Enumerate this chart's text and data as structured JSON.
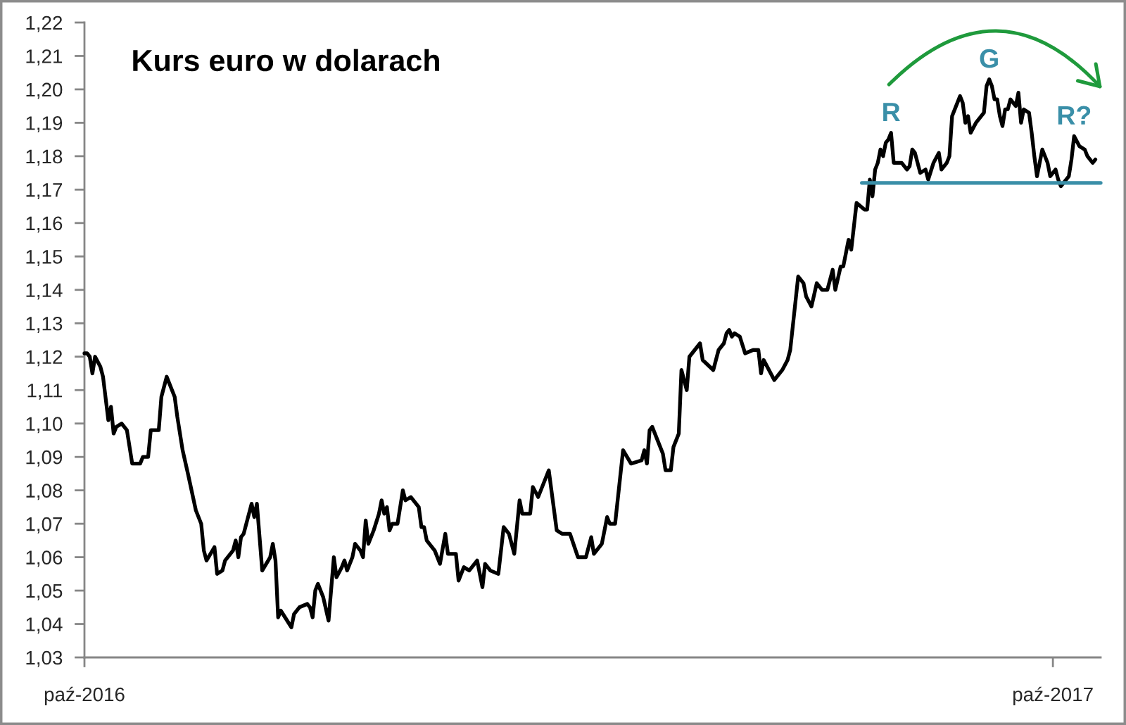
{
  "chart_data": {
    "type": "line",
    "title": "Kurs euro w dolarach",
    "x": [
      "2016-10-03",
      "2016-10-04",
      "2016-10-05",
      "2016-10-06",
      "2016-10-07",
      "2016-10-09",
      "2016-10-10",
      "2016-10-12",
      "2016-10-13",
      "2016-10-14",
      "2016-10-15",
      "2016-10-17",
      "2016-10-19",
      "2016-10-21",
      "2016-10-24",
      "2016-10-25",
      "2016-10-27",
      "2016-10-28",
      "2016-10-31",
      "2016-11-01",
      "2016-11-03",
      "2016-11-06",
      "2016-11-07",
      "2016-11-09",
      "2016-11-11",
      "2016-11-14",
      "2016-11-16",
      "2016-11-17",
      "2016-11-18",
      "2016-11-21",
      "2016-11-22",
      "2016-11-24",
      "2016-11-25",
      "2016-11-28",
      "2016-11-29",
      "2016-11-30",
      "2016-12-01",
      "2016-12-02",
      "2016-12-05",
      "2016-12-06",
      "2016-12-07",
      "2016-12-09",
      "2016-12-12",
      "2016-12-13",
      "2016-12-14",
      "2016-12-15",
      "2016-12-16",
      "2016-12-20",
      "2016-12-21",
      "2016-12-23",
      "2016-12-26",
      "2016-12-27",
      "2016-12-28",
      "2016-12-29",
      "2016-12-30",
      "2017-01-01",
      "2017-01-03",
      "2017-01-05",
      "2017-01-06",
      "2017-01-08",
      "2017-01-09",
      "2017-01-10",
      "2017-01-12",
      "2017-01-13",
      "2017-01-15",
      "2017-01-16",
      "2017-01-17",
      "2017-01-18",
      "2017-01-20",
      "2017-01-22",
      "2017-01-23",
      "2017-01-24",
      "2017-01-25",
      "2017-01-26",
      "2017-01-27",
      "2017-01-29",
      "2017-01-31",
      "2017-02-01",
      "2017-02-03",
      "2017-02-06",
      "2017-02-07",
      "2017-02-08",
      "2017-02-09",
      "2017-02-12",
      "2017-02-14",
      "2017-02-16",
      "2017-02-17",
      "2017-02-20",
      "2017-02-21",
      "2017-02-23",
      "2017-02-25",
      "2017-02-28",
      "2017-03-02",
      "2017-03-03",
      "2017-03-05",
      "2017-03-08",
      "2017-03-10",
      "2017-03-12",
      "2017-03-14",
      "2017-03-16",
      "2017-03-17",
      "2017-03-20",
      "2017-03-21",
      "2017-03-23",
      "2017-03-27",
      "2017-03-30",
      "2017-04-01",
      "2017-04-04",
      "2017-04-07",
      "2017-04-10",
      "2017-04-12",
      "2017-04-13",
      "2017-04-16",
      "2017-04-18",
      "2017-04-19",
      "2017-04-21",
      "2017-04-24",
      "2017-04-27",
      "2017-05-01",
      "2017-05-02",
      "2017-05-03",
      "2017-05-04",
      "2017-05-05",
      "2017-05-09",
      "2017-05-10",
      "2017-05-12",
      "2017-05-13",
      "2017-05-15",
      "2017-05-16",
      "2017-05-18",
      "2017-05-19",
      "2017-05-21",
      "2017-05-23",
      "2017-05-24",
      "2017-05-28",
      "2017-05-30",
      "2017-06-01",
      "2017-06-02",
      "2017-06-03",
      "2017-06-04",
      "2017-06-05",
      "2017-06-07",
      "2017-06-09",
      "2017-06-12",
      "2017-06-14",
      "2017-06-15",
      "2017-06-16",
      "2017-06-20",
      "2017-06-23",
      "2017-06-25",
      "2017-06-26",
      "2017-06-29",
      "2017-07-01",
      "2017-07-02",
      "2017-07-04",
      "2017-07-06",
      "2017-07-08",
      "2017-07-10",
      "2017-07-12",
      "2017-07-13",
      "2017-07-15",
      "2017-07-16",
      "2017-07-17",
      "2017-07-18",
      "2017-07-19",
      "2017-07-21",
      "2017-07-24",
      "2017-07-25",
      "2017-07-26",
      "2017-07-27",
      "2017-07-28",
      "2017-07-29",
      "2017-07-30",
      "2017-07-31",
      "2017-08-01",
      "2017-08-02",
      "2017-08-03",
      "2017-08-04",
      "2017-08-06",
      "2017-08-07",
      "2017-08-09",
      "2017-08-10",
      "2017-08-11",
      "2017-08-12",
      "2017-08-14",
      "2017-08-16",
      "2017-08-17",
      "2017-08-19",
      "2017-08-21",
      "2017-08-22",
      "2017-08-24",
      "2017-08-25",
      "2017-08-26",
      "2017-08-27",
      "2017-08-29",
      "2017-08-30",
      "2017-08-31",
      "2017-09-01",
      "2017-09-02",
      "2017-09-04",
      "2017-09-06",
      "2017-09-07",
      "2017-09-08",
      "2017-09-09",
      "2017-09-10",
      "2017-09-11",
      "2017-09-12",
      "2017-09-13",
      "2017-09-14",
      "2017-09-15",
      "2017-09-16",
      "2017-09-17",
      "2017-09-19",
      "2017-09-20",
      "2017-09-21",
      "2017-09-22",
      "2017-09-24",
      "2017-09-25",
      "2017-09-26",
      "2017-09-27",
      "2017-09-29",
      "2017-10-01",
      "2017-10-02",
      "2017-10-04",
      "2017-10-05",
      "2017-10-06",
      "2017-10-08",
      "2017-10-09",
      "2017-10-10",
      "2017-10-11",
      "2017-10-13",
      "2017-10-15",
      "2017-10-16",
      "2017-10-18",
      "2017-10-19"
    ],
    "series": [
      {
        "color": "#000000",
        "values": [
          1.121,
          1.121,
          1.12,
          1.115,
          1.12,
          1.117,
          1.114,
          1.101,
          1.105,
          1.097,
          1.099,
          1.1,
          1.098,
          1.088,
          1.088,
          1.09,
          1.09,
          1.098,
          1.098,
          1.108,
          1.114,
          1.108,
          1.102,
          1.092,
          1.085,
          1.074,
          1.07,
          1.062,
          1.059,
          1.063,
          1.055,
          1.056,
          1.059,
          1.062,
          1.065,
          1.06,
          1.066,
          1.067,
          1.076,
          1.072,
          1.076,
          1.056,
          1.06,
          1.064,
          1.059,
          1.042,
          1.044,
          1.039,
          1.043,
          1.045,
          1.046,
          1.045,
          1.042,
          1.05,
          1.052,
          1.048,
          1.041,
          1.06,
          1.054,
          1.057,
          1.059,
          1.056,
          1.06,
          1.064,
          1.062,
          1.06,
          1.071,
          1.064,
          1.068,
          1.073,
          1.077,
          1.073,
          1.075,
          1.068,
          1.07,
          1.07,
          1.08,
          1.077,
          1.078,
          1.075,
          1.069,
          1.069,
          1.065,
          1.062,
          1.058,
          1.067,
          1.061,
          1.061,
          1.053,
          1.057,
          1.056,
          1.059,
          1.051,
          1.058,
          1.056,
          1.055,
          1.069,
          1.067,
          1.061,
          1.077,
          1.073,
          1.073,
          1.081,
          1.078,
          1.086,
          1.068,
          1.067,
          1.067,
          1.06,
          1.06,
          1.066,
          1.061,
          1.064,
          1.072,
          1.07,
          1.07,
          1.092,
          1.088,
          1.089,
          1.092,
          1.088,
          1.098,
          1.099,
          1.091,
          1.086,
          1.086,
          1.093,
          1.097,
          1.116,
          1.11,
          1.12,
          1.122,
          1.124,
          1.119,
          1.116,
          1.122,
          1.124,
          1.127,
          1.128,
          1.126,
          1.127,
          1.126,
          1.121,
          1.122,
          1.122,
          1.115,
          1.119,
          1.113,
          1.116,
          1.119,
          1.122,
          1.144,
          1.142,
          1.138,
          1.135,
          1.142,
          1.14,
          1.14,
          1.146,
          1.14,
          1.147,
          1.147,
          1.151,
          1.155,
          1.152,
          1.166,
          1.164,
          1.164,
          1.173,
          1.168,
          1.176,
          1.178,
          1.182,
          1.18,
          1.184,
          1.185,
          1.187,
          1.178,
          1.178,
          1.178,
          1.176,
          1.177,
          1.182,
          1.181,
          1.175,
          1.176,
          1.173,
          1.178,
          1.181,
          1.176,
          1.178,
          1.18,
          1.192,
          1.194,
          1.198,
          1.196,
          1.19,
          1.192,
          1.187,
          1.19,
          1.192,
          1.193,
          1.201,
          1.203,
          1.201,
          1.197,
          1.197,
          1.192,
          1.189,
          1.194,
          1.194,
          1.197,
          1.195,
          1.199,
          1.19,
          1.194,
          1.193,
          1.187,
          1.18,
          1.174,
          1.182,
          1.178,
          1.174,
          1.176,
          1.173,
          1.171,
          1.173,
          1.174,
          1.179,
          1.186,
          1.183,
          1.182,
          1.18,
          1.178,
          1.179
        ]
      },
      {
        "type": "line",
        "color": "#3a8fa8",
        "x": [
          "2017-07-23",
          "2017-10-21"
        ],
        "values": [
          1.172,
          1.172
        ]
      }
    ],
    "annotations": [
      {
        "text": "R",
        "x": "2017-08-03",
        "y": 1.187
      },
      {
        "text": "G",
        "x": "2017-09-09",
        "y": 1.203
      },
      {
        "text": "R?",
        "x": "2017-10-11",
        "y": 1.186
      }
    ],
    "xlim": [
      "2016-10-03",
      "2017-10-21"
    ],
    "xticks": [
      {
        "value": "2016-10-03",
        "label": "paź-2016"
      },
      {
        "value": "2017-10-03",
        "label": "paź-2017"
      }
    ],
    "ylim": [
      1.03,
      1.22
    ],
    "yticks": [
      {
        "value": 1.03,
        "label": "1,03"
      },
      {
        "value": 1.04,
        "label": "1,04"
      },
      {
        "value": 1.05,
        "label": "1,05"
      },
      {
        "value": 1.06,
        "label": "1,06"
      },
      {
        "value": 1.07,
        "label": "1,07"
      },
      {
        "value": 1.08,
        "label": "1,08"
      },
      {
        "value": 1.09,
        "label": "1,09"
      },
      {
        "value": 1.1,
        "label": "1,10"
      },
      {
        "value": 1.11,
        "label": "1,11"
      },
      {
        "value": 1.12,
        "label": "1,12"
      },
      {
        "value": 1.13,
        "label": "1,13"
      },
      {
        "value": 1.14,
        "label": "1,14"
      },
      {
        "value": 1.15,
        "label": "1,15"
      },
      {
        "value": 1.16,
        "label": "1,16"
      },
      {
        "value": 1.17,
        "label": "1,17"
      },
      {
        "value": 1.18,
        "label": "1,18"
      },
      {
        "value": 1.19,
        "label": "1,19"
      },
      {
        "value": 1.2,
        "label": "1,20"
      },
      {
        "value": 1.21,
        "label": "1,21"
      },
      {
        "value": 1.22,
        "label": "1,22"
      }
    ],
    "grid": false
  }
}
